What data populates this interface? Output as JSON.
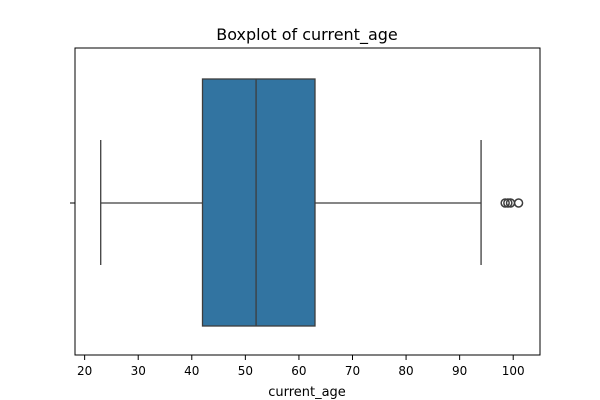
{
  "chart_data": {
    "type": "boxplot",
    "title": "Boxplot of current_age",
    "xlabel": "current_age",
    "ylabel": "",
    "orientation": "horizontal",
    "xlim": [
      18.2,
      105.0
    ],
    "xticks": [
      20,
      30,
      40,
      50,
      60,
      70,
      80,
      90,
      100
    ],
    "grid": false,
    "series": [
      {
        "whisker_low": 23,
        "q1": 42,
        "median": 52,
        "q3": 63,
        "whisker_high": 94,
        "outliers": [
          98.5,
          99,
          99.5,
          101
        ]
      }
    ],
    "colors": {
      "box_fill": "#3274a1",
      "line": "#3d3d3d",
      "axis": "#000000"
    }
  }
}
